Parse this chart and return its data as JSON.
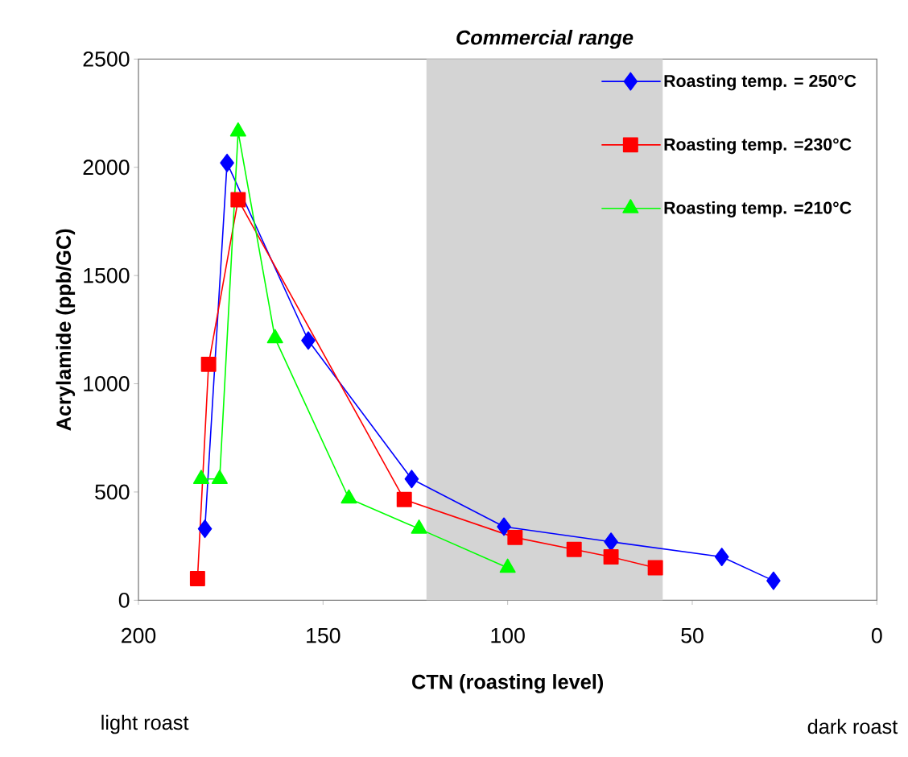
{
  "chart_data": {
    "type": "line",
    "xlabel": "CTN (roasting level)",
    "ylabel": "Acrylamide (ppb/GC)",
    "xlim": [
      200,
      0
    ],
    "xticks": [
      200,
      150,
      100,
      50,
      0
    ],
    "ylim": [
      0,
      2500
    ],
    "yticks": [
      0,
      500,
      1000,
      1500,
      2000,
      2500
    ],
    "legend": "top right",
    "grid": false,
    "series": [
      {
        "name": "Roasting temp. = 250°C",
        "color": "#0000ff",
        "marker": "diamond",
        "x": [
          182,
          176,
          154,
          126,
          101,
          72,
          42,
          28
        ],
        "values": [
          330,
          2020,
          1200,
          560,
          340,
          270,
          200,
          90
        ]
      },
      {
        "name": "Roasting temp. =230°C",
        "color": "#ff0000",
        "marker": "square",
        "x": [
          184,
          181,
          173,
          128,
          98,
          82,
          72,
          60
        ],
        "values": [
          100,
          1090,
          1850,
          465,
          290,
          235,
          200,
          150
        ]
      },
      {
        "name": "Roasting temp. =210°C",
        "color": "#00ff00",
        "marker": "triangle",
        "x": [
          183,
          178,
          173,
          163,
          143,
          124,
          100
        ],
        "values": [
          560,
          560,
          2165,
          1210,
          470,
          330,
          150
        ]
      }
    ],
    "bands": [
      {
        "axis": "x",
        "from": 122,
        "to": 58,
        "label": "Commercial range",
        "color": "#d4d4d4"
      }
    ],
    "annotations": [
      "light roast",
      "dark roast"
    ]
  }
}
